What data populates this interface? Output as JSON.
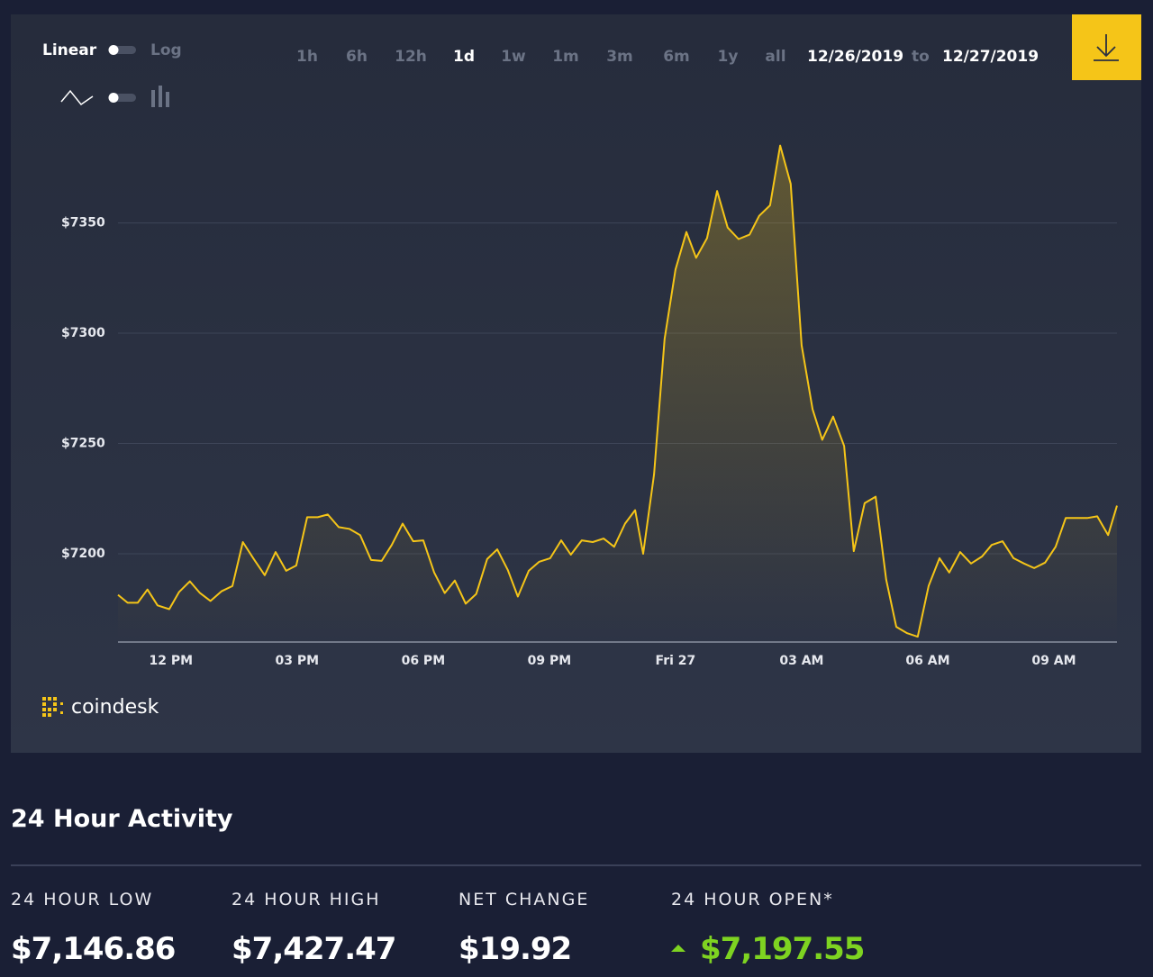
{
  "controls": {
    "scale_linear": "Linear",
    "scale_log": "Log",
    "ranges": [
      {
        "label": "1h",
        "active": false
      },
      {
        "label": "6h",
        "active": false
      },
      {
        "label": "12h",
        "active": false
      },
      {
        "label": "1d",
        "active": true
      },
      {
        "label": "1w",
        "active": false
      },
      {
        "label": "1m",
        "active": false
      },
      {
        "label": "3m",
        "active": false
      },
      {
        "label": "6m",
        "active": false
      },
      {
        "label": "1y",
        "active": false
      },
      {
        "label": "all",
        "active": false
      }
    ],
    "date_from": "12/26/2019",
    "date_to_word": "to",
    "date_to": "12/27/2019"
  },
  "chart_data": {
    "type": "line",
    "color": "#f5c518",
    "grid": true,
    "xlim": [
      10.74,
      34.5
    ],
    "xticks": [
      {
        "value": 12,
        "label": "12 PM"
      },
      {
        "value": 15,
        "label": "03 PM"
      },
      {
        "value": 18,
        "label": "06 PM"
      },
      {
        "value": 21,
        "label": "09 PM"
      },
      {
        "value": 24,
        "label": "Fri 27"
      },
      {
        "value": 27,
        "label": "03 AM"
      },
      {
        "value": 30,
        "label": "06 AM"
      },
      {
        "value": 33,
        "label": "09 AM"
      }
    ],
    "ylim": [
      7160,
      7398
    ],
    "yticks": [
      {
        "value": 7200,
        "label": "$7200"
      },
      {
        "value": 7250,
        "label": "$7250"
      },
      {
        "value": 7300,
        "label": "$7300"
      },
      {
        "value": 7350,
        "label": "$7350"
      }
    ],
    "x": [
      10.74,
      10.97,
      11.21,
      11.44,
      11.68,
      11.96,
      12.19,
      12.45,
      12.69,
      12.94,
      13.2,
      13.46,
      13.71,
      13.97,
      14.23,
      14.49,
      14.74,
      14.98,
      15.24,
      15.49,
      15.73,
      15.99,
      16.24,
      16.5,
      16.76,
      17.01,
      17.25,
      17.51,
      17.76,
      18.0,
      18.26,
      18.51,
      18.75,
      19.01,
      19.26,
      19.52,
      19.76,
      20.01,
      20.25,
      20.51,
      20.76,
      21.02,
      21.28,
      21.51,
      21.77,
      22.03,
      22.29,
      22.54,
      22.8,
      23.04,
      23.23,
      23.49,
      23.74,
      24.0,
      24.26,
      24.49,
      24.75,
      24.99,
      25.24,
      25.5,
      25.76,
      25.99,
      26.25,
      26.49,
      26.74,
      27.0,
      27.26,
      27.49,
      27.75,
      28.01,
      28.24,
      28.5,
      28.76,
      29.01,
      29.25,
      29.51,
      29.76,
      30.02,
      30.28,
      30.51,
      30.77,
      31.03,
      31.29,
      31.52,
      31.78,
      32.04,
      32.29,
      32.53,
      32.79,
      33.04,
      33.28,
      33.54,
      33.79,
      34.03,
      34.29,
      34.5
    ],
    "values": [
      7181.4,
      7177.8,
      7177.8,
      7183.8,
      7176.6,
      7174.9,
      7182.6,
      7187.5,
      7182.2,
      7178.6,
      7183.0,
      7185.4,
      7205.3,
      7197.6,
      7190.3,
      7200.8,
      7192.3,
      7194.7,
      7216.6,
      7216.6,
      7217.8,
      7212.1,
      7211.3,
      7208.5,
      7197.2,
      7196.8,
      7204.0,
      7213.7,
      7205.7,
      7206.1,
      7191.5,
      7182.2,
      7187.9,
      7177.4,
      7181.8,
      7197.6,
      7202.0,
      7192.7,
      7180.6,
      7192.3,
      7196.4,
      7198.0,
      7206.1,
      7199.6,
      7206.1,
      7205.3,
      7206.9,
      7203.2,
      7213.7,
      7219.8,
      7200.0,
      7236.0,
      7297.4,
      7328.9,
      7345.9,
      7334.2,
      7343.1,
      7364.5,
      7347.9,
      7342.7,
      7344.7,
      7353.2,
      7358.0,
      7385.1,
      7367.7,
      7294.6,
      7265.5,
      7251.7,
      7262.2,
      7248.9,
      7201.2,
      7223.0,
      7225.9,
      7188.3,
      7166.9,
      7164.0,
      7162.4,
      7185.4,
      7198.0,
      7191.5,
      7200.8,
      7195.6,
      7198.8,
      7204.0,
      7205.7,
      7198.0,
      7195.6,
      7193.5,
      7196.0,
      7203.2,
      7216.2,
      7216.2,
      7216.2,
      7217.0,
      7208.5,
      7221.8
    ]
  },
  "brand": "coindesk",
  "activity": {
    "title": "24 Hour Activity",
    "stats": [
      {
        "label": "24 HOUR LOW",
        "value": "$7,146.86"
      },
      {
        "label": "24 HOUR HIGH",
        "value": "$7,427.47"
      },
      {
        "label": "NET CHANGE",
        "value": "$19.92"
      },
      {
        "label": "24 HOUR OPEN*",
        "value": "$7,197.55",
        "color": "#7ed321"
      }
    ]
  }
}
